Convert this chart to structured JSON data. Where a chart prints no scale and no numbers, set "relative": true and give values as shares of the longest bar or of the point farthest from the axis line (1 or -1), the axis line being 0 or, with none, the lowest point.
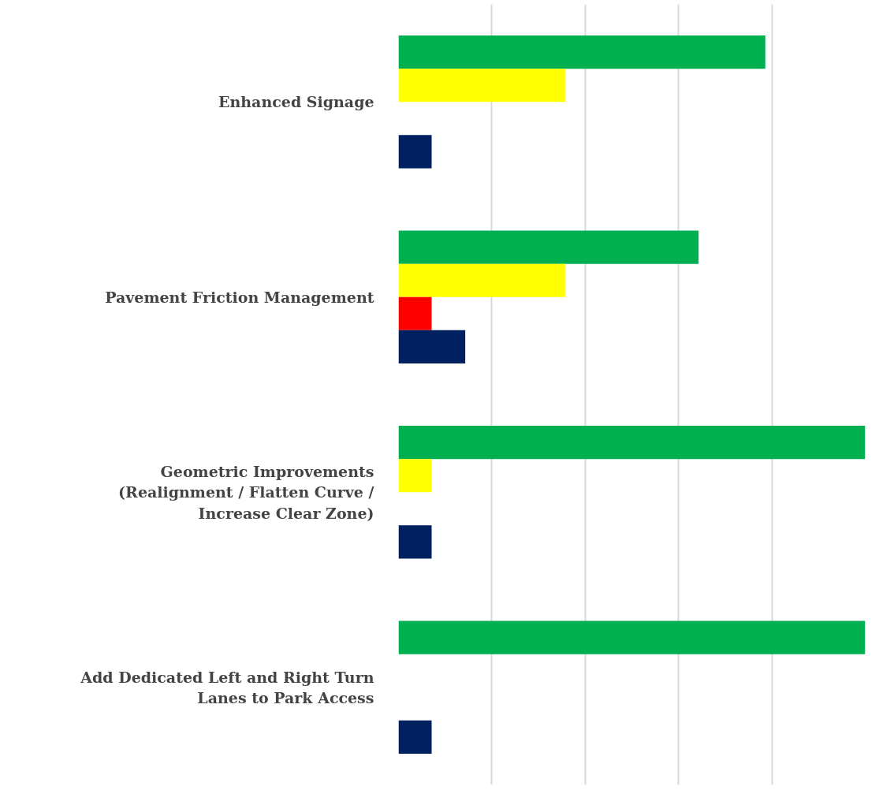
{
  "chart_data": {
    "type": "bar",
    "orientation": "horizontal",
    "relative": true,
    "categories": [
      "Enhanced Signage",
      "Pavement Friction Management",
      "Geometric Improvements\n(Realignment / Flatten Curve /\nIncrease Clear Zone)",
      "Add Dedicated Left and Right Turn\nLanes to Park Access"
    ],
    "series": [
      {
        "color": "#00b050",
        "values": [
          0.786,
          0.643,
          1.0,
          1.0
        ]
      },
      {
        "color": "#ffff00",
        "values": [
          0.357,
          0.357,
          0.071,
          null
        ]
      },
      {
        "color": "#ff0000",
        "values": [
          null,
          0.071,
          null,
          null
        ]
      },
      {
        "color": "#002060",
        "values": [
          0.071,
          0.143,
          0.071,
          0.071
        ]
      }
    ],
    "grid": "x"
  }
}
